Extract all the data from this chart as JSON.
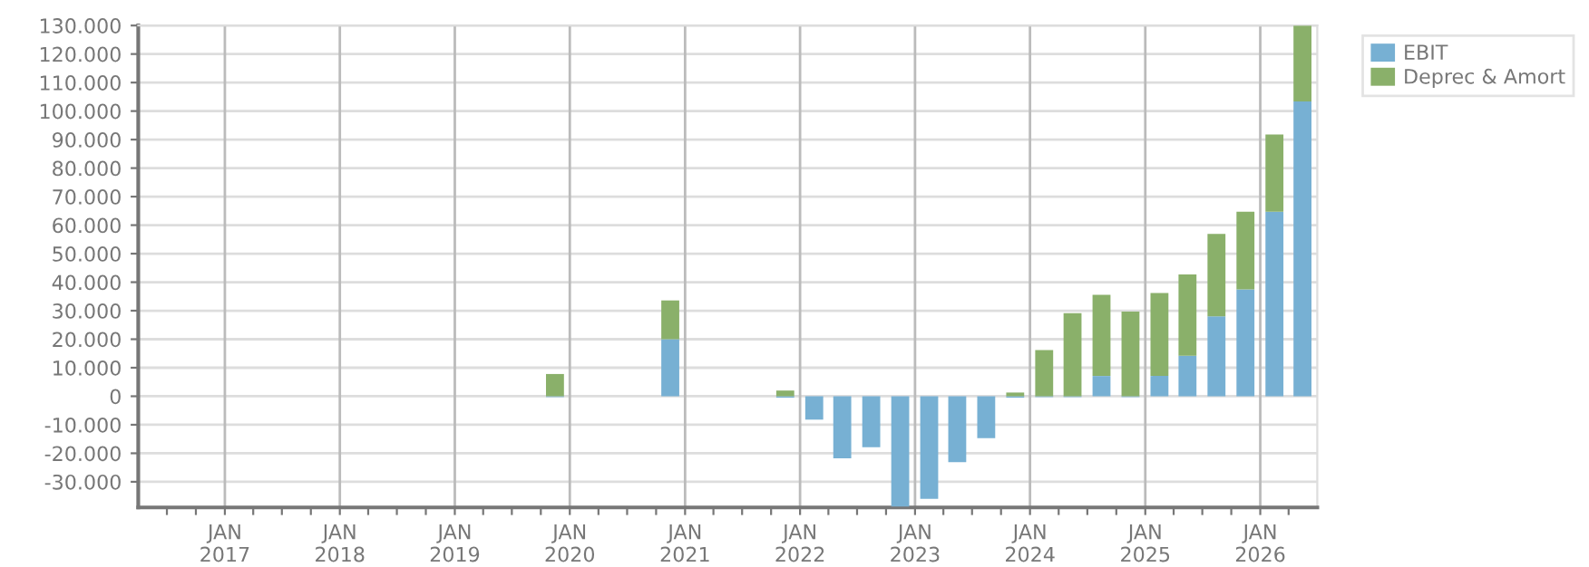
{
  "chart_data": {
    "type": "bar",
    "stacked": true,
    "x": [
      "2019-11-15",
      "2020-11-15",
      "2021-11-15",
      "2022-02-15",
      "2022-05-15",
      "2022-08-15",
      "2022-11-15",
      "2023-02-15",
      "2023-05-15",
      "2023-08-15",
      "2023-11-15",
      "2024-02-15",
      "2024-05-15",
      "2024-08-15",
      "2024-11-15",
      "2025-02-15",
      "2025-05-15",
      "2025-08-15",
      "2025-11-15",
      "2026-02-15",
      "2026-05-15"
    ],
    "series": [
      {
        "name": "EBIT",
        "color": "#77b0d3",
        "values": [
          -300,
          20000,
          -500,
          -8200,
          -21800,
          -17900,
          -38700,
          -36000,
          -23100,
          -14700,
          -500,
          -300,
          -300,
          7100,
          -300,
          7100,
          14200,
          28000,
          37500,
          64700,
          103400
        ]
      },
      {
        "name": "Deprec & Amort",
        "color": "#8ab06a",
        "values": [
          7800,
          13600,
          2000,
          null,
          null,
          null,
          null,
          null,
          null,
          null,
          1300,
          16200,
          29100,
          28500,
          29700,
          29100,
          28500,
          28900,
          27200,
          27100,
          26600
        ]
      }
    ],
    "xlim": [
      "2016-04-01",
      "2026-07-01"
    ],
    "xticks": [
      {
        "value": "2016-07-01",
        "label": null
      },
      {
        "value": "2016-10-01",
        "label": null
      },
      {
        "value": "2017-01-01",
        "label": "JAN\n2017"
      },
      {
        "value": "2017-04-01",
        "label": null
      },
      {
        "value": "2017-07-01",
        "label": null
      },
      {
        "value": "2017-10-01",
        "label": null
      },
      {
        "value": "2018-01-01",
        "label": "JAN\n2018"
      },
      {
        "value": "2018-04-01",
        "label": null
      },
      {
        "value": "2018-07-01",
        "label": null
      },
      {
        "value": "2018-10-01",
        "label": null
      },
      {
        "value": "2019-01-01",
        "label": "JAN\n2019"
      },
      {
        "value": "2019-04-01",
        "label": null
      },
      {
        "value": "2019-07-01",
        "label": null
      },
      {
        "value": "2019-10-01",
        "label": null
      },
      {
        "value": "2020-01-01",
        "label": "JAN\n2020"
      },
      {
        "value": "2020-04-01",
        "label": null
      },
      {
        "value": "2020-07-01",
        "label": null
      },
      {
        "value": "2020-10-01",
        "label": null
      },
      {
        "value": "2021-01-01",
        "label": "JAN\n2021"
      },
      {
        "value": "2021-04-01",
        "label": null
      },
      {
        "value": "2021-07-01",
        "label": null
      },
      {
        "value": "2021-10-01",
        "label": null
      },
      {
        "value": "2022-01-01",
        "label": "JAN\n2022"
      },
      {
        "value": "2022-04-01",
        "label": null
      },
      {
        "value": "2022-07-01",
        "label": null
      },
      {
        "value": "2022-10-01",
        "label": null
      },
      {
        "value": "2023-01-01",
        "label": "JAN\n2023"
      },
      {
        "value": "2023-04-01",
        "label": null
      },
      {
        "value": "2023-07-01",
        "label": null
      },
      {
        "value": "2023-10-01",
        "label": null
      },
      {
        "value": "2024-01-01",
        "label": "JAN\n2024"
      },
      {
        "value": "2024-04-01",
        "label": null
      },
      {
        "value": "2024-07-01",
        "label": null
      },
      {
        "value": "2024-10-01",
        "label": null
      },
      {
        "value": "2025-01-01",
        "label": "JAN\n2025"
      },
      {
        "value": "2025-04-01",
        "label": null
      },
      {
        "value": "2025-07-01",
        "label": null
      },
      {
        "value": "2025-10-01",
        "label": null
      },
      {
        "value": "2026-01-01",
        "label": "JAN\n2026"
      },
      {
        "value": "2026-04-01",
        "label": null
      }
    ],
    "ylim": [
      -39000,
      130000
    ],
    "yticks": [
      {
        "value": -30000,
        "label": "-30.000"
      },
      {
        "value": -20000,
        "label": "-20.000"
      },
      {
        "value": -10000,
        "label": "-10.000"
      },
      {
        "value": 0,
        "label": "0"
      },
      {
        "value": 10000,
        "label": "10.000"
      },
      {
        "value": 20000,
        "label": "20.000"
      },
      {
        "value": 30000,
        "label": "30.000"
      },
      {
        "value": 40000,
        "label": "40.000"
      },
      {
        "value": 50000,
        "label": "50.000"
      },
      {
        "value": 60000,
        "label": "60.000"
      },
      {
        "value": 70000,
        "label": "70.000"
      },
      {
        "value": 80000,
        "label": "80.000"
      },
      {
        "value": 90000,
        "label": "90.000"
      },
      {
        "value": 100000,
        "label": "100.000"
      },
      {
        "value": 110000,
        "label": "110.000"
      },
      {
        "value": 120000,
        "label": "120.000"
      },
      {
        "value": 130000,
        "label": "130.000"
      }
    ],
    "grid": true,
    "legend": "top right"
  }
}
